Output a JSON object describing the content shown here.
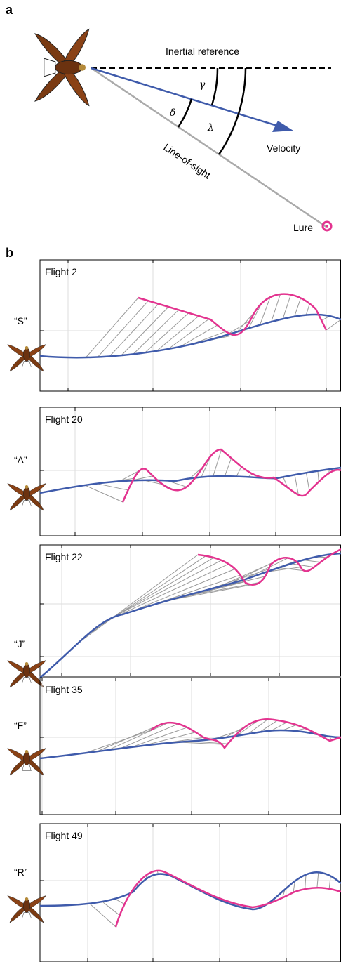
{
  "panel_a": {
    "label": "a",
    "inertial_reference": "Inertial reference",
    "velocity": "Velocity",
    "line_of_sight": "Line-of-sight",
    "lure": "Lure",
    "gamma": "γ",
    "delta": "δ",
    "lambda": "λ"
  },
  "panel_b": {
    "label": "b",
    "flights": [
      {
        "title": "Flight 2",
        "bird": "“S”"
      },
      {
        "title": "Flight 20",
        "bird": "“A”"
      },
      {
        "title": "Flight 22",
        "bird": "“J”"
      },
      {
        "title": "Flight 35",
        "bird": "“F”"
      },
      {
        "title": "Flight 49",
        "bird": "“R”"
      }
    ]
  }
}
